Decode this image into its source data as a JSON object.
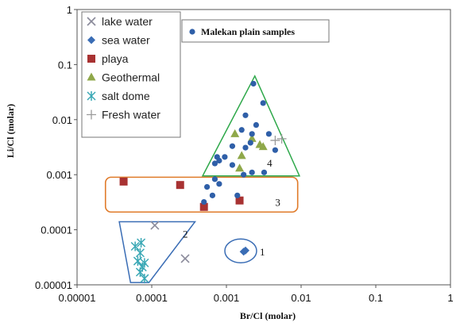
{
  "chart_data": {
    "type": "scatter",
    "xlabel": "Br/Cl (molar)",
    "ylabel": "Li/Cl (molar)",
    "xscale": "log",
    "yscale": "log",
    "xlim": [
      1e-05,
      1
    ],
    "ylim": [
      1e-05,
      1
    ],
    "x_ticks": [
      "0.00001",
      "0.0001",
      "0.001",
      "0.01",
      "0.1",
      "1"
    ],
    "y_ticks": [
      "0.00001",
      "0.0001",
      "0.001",
      "0.01",
      "0.1",
      "1"
    ],
    "grid": false,
    "legend_position": "top-left",
    "series": [
      {
        "name": "lake water",
        "marker": "x",
        "color": "#8a8a9a",
        "points": [
          [
            0.00011,
            0.00012
          ],
          [
            0.00028,
            3e-05
          ]
        ]
      },
      {
        "name": "sea water",
        "marker": "diamond",
        "color": "#3a6db5",
        "points": [
          [
            0.0017,
            4e-05
          ],
          [
            0.0018,
            4.2e-05
          ]
        ]
      },
      {
        "name": "playa",
        "marker": "square",
        "color": "#a83232",
        "points": [
          [
            4.2e-05,
            0.00075
          ],
          [
            0.00024,
            0.00065
          ],
          [
            0.0005,
            0.00026
          ],
          [
            0.0015,
            0.00034
          ]
        ]
      },
      {
        "name": "Geothermal",
        "marker": "triangle",
        "color": "#8fa84a",
        "points": [
          [
            0.0013,
            0.0055
          ],
          [
            0.0016,
            0.0022
          ],
          [
            0.0022,
            0.0045
          ],
          [
            0.0028,
            0.0035
          ],
          [
            0.0031,
            0.0032
          ],
          [
            0.0015,
            0.0013
          ]
        ]
      },
      {
        "name": "salt dome",
        "marker": "asterisk",
        "color": "#3aa8b5",
        "points": [
          [
            6e-05,
            5e-05
          ],
          [
            7.2e-05,
            5.8e-05
          ],
          [
            7e-05,
            3.8e-05
          ],
          [
            6.5e-05,
            2.7e-05
          ],
          [
            8e-05,
            2.5e-05
          ],
          [
            7.5e-05,
            2.1e-05
          ],
          [
            7e-05,
            1.7e-05
          ],
          [
            8e-05,
            1.3e-05
          ]
        ]
      },
      {
        "name": "Fresh water",
        "marker": "plus",
        "color": "#9a9a9a",
        "points": [
          [
            0.0045,
            0.0042
          ],
          [
            0.0055,
            0.0045
          ]
        ]
      },
      {
        "name": "Malekan plain samples",
        "marker": "circle",
        "color": "#2f5fa8",
        "points": [
          [
            0.0023,
            0.045
          ],
          [
            0.0031,
            0.02
          ],
          [
            0.0018,
            0.012
          ],
          [
            0.0025,
            0.008
          ],
          [
            0.0016,
            0.0065
          ],
          [
            0.0022,
            0.0055
          ],
          [
            0.0037,
            0.0055
          ],
          [
            0.0012,
            0.0033
          ],
          [
            0.0018,
            0.0031
          ],
          [
            0.0021,
            0.0038
          ],
          [
            0.0045,
            0.0028
          ],
          [
            0.00075,
            0.0021
          ],
          [
            0.0008,
            0.0018
          ],
          [
            0.00095,
            0.0021
          ],
          [
            0.0007,
            0.0016
          ],
          [
            0.0012,
            0.0015
          ],
          [
            0.0022,
            0.0011
          ],
          [
            0.0032,
            0.0011
          ],
          [
            0.0017,
            0.001
          ],
          [
            0.0007,
            0.00083
          ],
          [
            0.00055,
            0.0006
          ],
          [
            0.00065,
            0.00042
          ],
          [
            0.0005,
            0.00032
          ],
          [
            0.0014,
            0.00042
          ],
          [
            0.0008,
            0.00068
          ]
        ]
      }
    ],
    "annotations": [
      {
        "label": "1",
        "shape": "ellipse",
        "color": "#3a6db5",
        "center": [
          0.0018,
          4e-05
        ]
      },
      {
        "label": "2",
        "shape": "parallelogram",
        "color": "#3a6db5"
      },
      {
        "label": "3",
        "shape": "rounded-rectangle",
        "color": "#e07b2a"
      },
      {
        "label": "4",
        "shape": "triangle",
        "color": "#2ea84a"
      }
    ],
    "legend_main": [
      "lake water",
      "sea water",
      "playa",
      "Geothermal",
      "salt dome",
      "Fresh water"
    ],
    "legend_secondary": "Malekan plain samples"
  }
}
